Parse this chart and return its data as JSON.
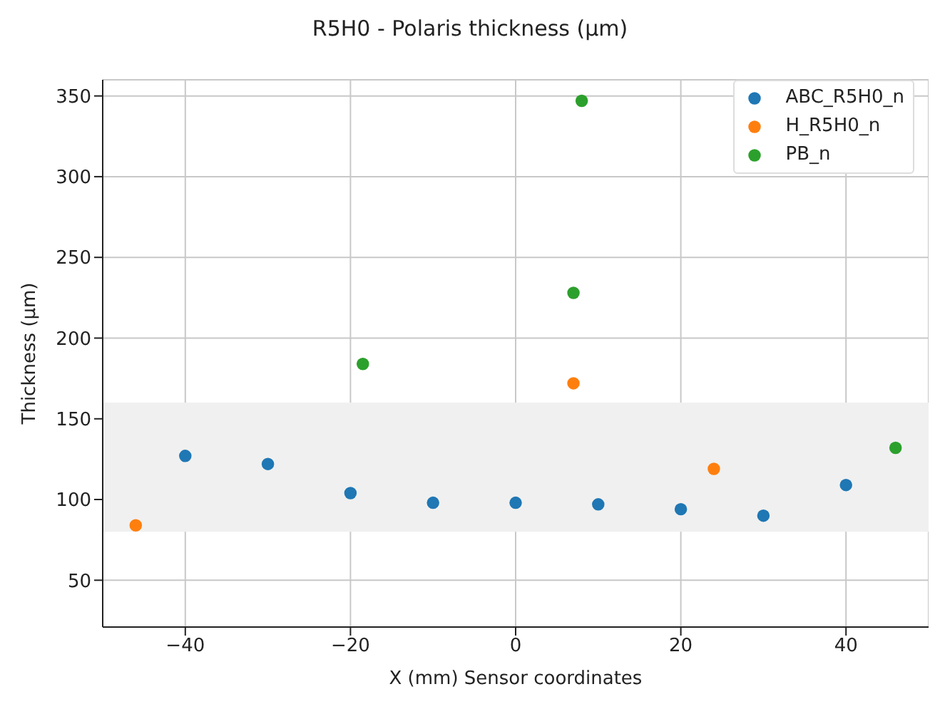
{
  "chart_data": {
    "type": "scatter",
    "title": "R5H0 - Polaris thickness (μm)",
    "xlabel": "X (mm) Sensor coordinates",
    "ylabel": "Thickness (μm)",
    "xlim": [
      -50,
      50
    ],
    "xticks": [
      -40,
      -20,
      0,
      20,
      40
    ],
    "ylim": [
      21,
      360
    ],
    "yticks": [
      50,
      100,
      150,
      200,
      250,
      300,
      350
    ],
    "grid": true,
    "legend": "top right",
    "marker": "circle",
    "bands": [
      {
        "axis": "y",
        "from": 80,
        "to": 160,
        "color": "#f0f0f0"
      }
    ],
    "series": [
      {
        "name": "ABC_R5H0_n",
        "color": "#1f77b4",
        "x": [
          -40,
          -30,
          -20,
          -10,
          0,
          10,
          20,
          30,
          40
        ],
        "values": [
          127,
          122,
          104,
          98,
          98,
          97,
          94,
          90,
          109
        ]
      },
      {
        "name": "H_R5H0_n",
        "color": "#ff7f0e",
        "x": [
          -46,
          7,
          24
        ],
        "values": [
          84,
          172,
          119
        ]
      },
      {
        "name": "PB_n",
        "color": "#2ca02c",
        "x": [
          -18.5,
          7,
          8,
          46
        ],
        "values": [
          184,
          228,
          347,
          132
        ]
      }
    ]
  }
}
